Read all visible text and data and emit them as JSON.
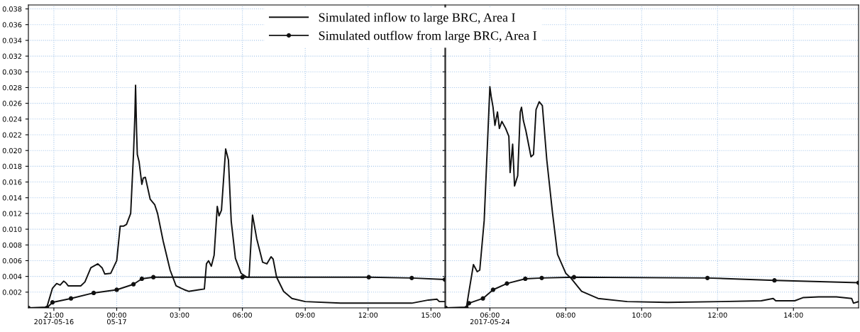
{
  "chart_data": [
    {
      "type": "line",
      "xlim": [
        "2017-05-16T19:47",
        "2017-05-17T15:40"
      ],
      "ylim": [
        0,
        0.0385
      ],
      "xticks": [
        {
          "value": "2017-05-16T21:00",
          "label": "21:00\n2017-05-16"
        },
        {
          "value": "2017-05-17T00:00",
          "label": "00:00\n05-17"
        },
        {
          "value": "2017-05-17T03:00",
          "label": "03:00"
        },
        {
          "value": "2017-05-17T06:00",
          "label": "06:00"
        },
        {
          "value": "2017-05-17T09:00",
          "label": "09:00"
        },
        {
          "value": "2017-05-17T12:00",
          "label": "12:00"
        },
        {
          "value": "2017-05-17T15:00",
          "label": "15:00"
        }
      ],
      "yticks": [
        0.002,
        0.004,
        0.006,
        0.008,
        {
          "value": 0.01,
          "label": "0.010"
        },
        0.012,
        0.014,
        0.016,
        0.018,
        {
          "value": 0.02,
          "label": "0.020"
        },
        0.022,
        0.024,
        0.026,
        0.028,
        {
          "value": 0.03,
          "label": "0.030"
        },
        0.032,
        0.034,
        0.036,
        0.038
      ],
      "grid": true,
      "legend": "top right",
      "series": [
        {
          "name": "Simulated inflow to large BRC, Area I",
          "color": "#111111",
          "marker": "none",
          "x": [
            "2017-05-16T19:47",
            "2017-05-16T20:40",
            "2017-05-16T20:56",
            "2017-05-16T21:08",
            "2017-05-16T21:18",
            "2017-05-16T21:28",
            "2017-05-16T21:34",
            "2017-05-16T21:41",
            "2017-05-16T22:17",
            "2017-05-16T22:29",
            "2017-05-16T22:46",
            "2017-05-16T23:06",
            "2017-05-16T23:18",
            "2017-05-16T23:26",
            "2017-05-16T23:43",
            "2017-05-17T00:00",
            "2017-05-17T00:10",
            "2017-05-17T00:20",
            "2017-05-17T00:28",
            "2017-05-17T00:40",
            "2017-05-17T00:48",
            "2017-05-17T00:52",
            "2017-05-17T00:54",
            "2017-05-17T00:57",
            "2017-05-17T00:59",
            "2017-05-17T01:04",
            "2017-05-17T01:12",
            "2017-05-17T01:16",
            "2017-05-17T01:22",
            "2017-05-17T01:36",
            "2017-05-17T01:49",
            "2017-05-17T01:57",
            "2017-05-17T02:13",
            "2017-05-17T02:33",
            "2017-05-17T02:50",
            "2017-05-17T03:14",
            "2017-05-17T03:26",
            "2017-05-17T03:55",
            "2017-05-17T04:11",
            "2017-05-17T04:17",
            "2017-05-17T04:23",
            "2017-05-17T04:31",
            "2017-05-17T04:39",
            "2017-05-17T04:48",
            "2017-05-17T04:53",
            "2017-05-17T05:00",
            "2017-05-17T05:12",
            "2017-05-17T05:20",
            "2017-05-17T05:28",
            "2017-05-17T05:40",
            "2017-05-17T05:56",
            "2017-05-17T06:13",
            "2017-05-17T06:19",
            "2017-05-17T06:29",
            "2017-05-17T06:41",
            "2017-05-17T06:58",
            "2017-05-17T07:10",
            "2017-05-17T07:22",
            "2017-05-17T07:28",
            "2017-05-17T07:38",
            "2017-05-17T07:58",
            "2017-05-17T08:22",
            "2017-05-17T09:00",
            "2017-05-17T10:41",
            "2017-05-17T14:05",
            "2017-05-17T14:53",
            "2017-05-17T15:17",
            "2017-05-17T15:24",
            "2017-05-17T15:40"
          ],
          "values": [
            0,
            0.0001,
            0.0025,
            0.0031,
            0.0029,
            0.0034,
            0.0032,
            0.0028,
            0.0028,
            0.0033,
            0.0051,
            0.0056,
            0.0051,
            0.0043,
            0.0044,
            0.006,
            0.0104,
            0.0104,
            0.0106,
            0.012,
            0.0195,
            0.0244,
            0.0283,
            0.0223,
            0.0195,
            0.0186,
            0.0157,
            0.0165,
            0.0166,
            0.0138,
            0.0131,
            0.012,
            0.0085,
            0.0048,
            0.0028,
            0.0023,
            0.0021,
            0.0023,
            0.0024,
            0.0056,
            0.006,
            0.0053,
            0.0067,
            0.0129,
            0.0117,
            0.0124,
            0.0202,
            0.0188,
            0.011,
            0.0063,
            0.0044,
            0.0039,
            0.0039,
            0.0118,
            0.0088,
            0.0058,
            0.0056,
            0.0065,
            0.0062,
            0.0039,
            0.0021,
            0.0012,
            0.0008,
            0.0006,
            0.0006,
            0.001,
            0.0011,
            0.0008,
            0.0008
          ]
        },
        {
          "name": "Simulated outflow from large BRC, Area I",
          "color": "#111111",
          "marker": "circle",
          "x": [
            "2017-05-16T19:47",
            "2017-05-16T20:40",
            "2017-05-16T20:56",
            "2017-05-16T21:49",
            "2017-05-16T22:54",
            "2017-05-17T00:00",
            "2017-05-17T00:48",
            "2017-05-17T01:12",
            "2017-05-17T01:45",
            "2017-05-17T06:00",
            "2017-05-17T12:02",
            "2017-05-17T14:05",
            "2017-05-17T15:40"
          ],
          "values": [
            0,
            0,
            0.0007,
            0.0012,
            0.0019,
            0.0023,
            0.003,
            0.0037,
            0.0039,
            0.0039,
            0.0039,
            0.0038,
            0.0036
          ]
        }
      ]
    },
    {
      "type": "line",
      "xlim": [
        "2017-05-24T04:50",
        "2017-05-24T15:43"
      ],
      "ylim": [
        0,
        0.0385
      ],
      "tick_labels": "x",
      "xticks": [
        {
          "value": "2017-05-24T06:00",
          "label": "06:00\n2017-05-24"
        },
        {
          "value": "2017-05-24T08:00",
          "label": "08:00"
        },
        {
          "value": "2017-05-24T10:00",
          "label": "10:00"
        },
        {
          "value": "2017-05-24T12:00",
          "label": "12:00"
        },
        {
          "value": "2017-05-24T14:00",
          "label": "14:00"
        }
      ],
      "yticks": [
        0.002,
        0.004,
        0.006,
        0.008,
        0.01,
        0.012,
        0.014,
        0.016,
        0.018,
        0.02,
        0.022,
        0.024,
        0.026,
        0.028,
        0.03,
        0.032,
        0.034,
        0.036,
        0.038
      ],
      "grid": true,
      "series": [
        {
          "color": "#111111",
          "marker": "none",
          "x": [
            "2017-05-24T04:50",
            "2017-05-24T05:23",
            "2017-05-24T05:27",
            "2017-05-24T05:34",
            "2017-05-24T05:40",
            "2017-05-24T05:44",
            "2017-05-24T05:51",
            "2017-05-24T06:00",
            "2017-05-24T06:02",
            "2017-05-24T06:05",
            "2017-05-24T06:08",
            "2017-05-24T06:12",
            "2017-05-24T06:15",
            "2017-05-24T06:19",
            "2017-05-24T06:25",
            "2017-05-24T06:30",
            "2017-05-24T06:32",
            "2017-05-24T06:36",
            "2017-05-24T06:39",
            "2017-05-24T06:44",
            "2017-05-24T06:48",
            "2017-05-24T06:50",
            "2017-05-24T06:53",
            "2017-05-24T06:57",
            "2017-05-24T07:05",
            "2017-05-24T07:09",
            "2017-05-24T07:13",
            "2017-05-24T07:18",
            "2017-05-24T07:23",
            "2017-05-24T07:30",
            "2017-05-24T07:39",
            "2017-05-24T07:47",
            "2017-05-24T08:00",
            "2017-05-24T08:08",
            "2017-05-24T08:25",
            "2017-05-24T08:51",
            "2017-05-24T09:37",
            "2017-05-24T10:41",
            "2017-05-24T12:06",
            "2017-05-24T13:09",
            "2017-05-24T13:28",
            "2017-05-24T13:32",
            "2017-05-24T14:02",
            "2017-05-24T14:15",
            "2017-05-24T14:40",
            "2017-05-24T15:08",
            "2017-05-24T15:32",
            "2017-05-24T15:35",
            "2017-05-24T15:43"
          ],
          "values": [
            0,
            0.0001,
            0.0021,
            0.0055,
            0.0046,
            0.0048,
            0.0111,
            0.0281,
            0.0269,
            0.0255,
            0.0232,
            0.0249,
            0.0228,
            0.0237,
            0.0228,
            0.0218,
            0.0172,
            0.0208,
            0.0155,
            0.0168,
            0.0249,
            0.0255,
            0.0238,
            0.0225,
            0.0192,
            0.0195,
            0.0252,
            0.0262,
            0.0257,
            0.0188,
            0.0121,
            0.0068,
            0.0044,
            0.0038,
            0.0021,
            0.0012,
            0.0008,
            0.0007,
            0.0008,
            0.0009,
            0.0012,
            0.0009,
            0.0009,
            0.0013,
            0.0014,
            0.0014,
            0.0012,
            0.0006,
            0.0008
          ]
        },
        {
          "color": "#111111",
          "marker": "circle",
          "x": [
            "2017-05-24T04:50",
            "2017-05-24T05:23",
            "2017-05-24T05:27",
            "2017-05-24T05:49",
            "2017-05-24T06:05",
            "2017-05-24T06:27",
            "2017-05-24T06:56",
            "2017-05-24T07:22",
            "2017-05-24T08:13",
            "2017-05-24T11:44",
            "2017-05-24T13:30",
            "2017-05-24T15:43"
          ],
          "values": [
            0,
            0,
            0.0006,
            0.0012,
            0.0023,
            0.0031,
            0.0037,
            0.0038,
            0.0039,
            0.0038,
            0.0035,
            0.0032
          ]
        }
      ]
    }
  ]
}
